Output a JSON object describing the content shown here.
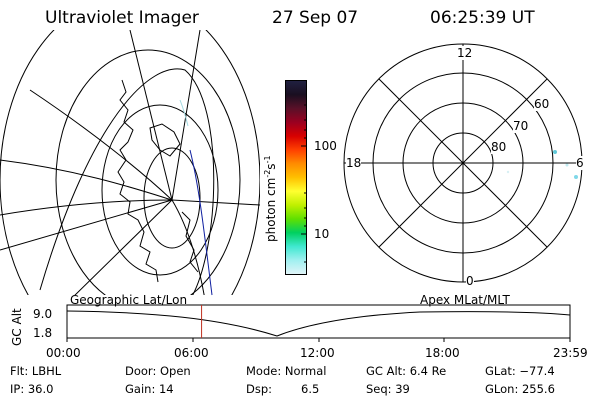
{
  "header": {
    "instrument": "Ultraviolet Imager",
    "date": "27 Sep 07",
    "time": "06:25:39 UT"
  },
  "colorbar": {
    "units": "photon cm",
    "units_sup1": "-2",
    "units_mid": "s",
    "units_sup2": "-1",
    "ticks": [
      "100",
      "10"
    ],
    "colors": [
      "#202040",
      "#1a0f20",
      "#5a1028",
      "#9a0020",
      "#d80000",
      "#ff4000",
      "#ff8c00",
      "#ffc000",
      "#ffff30",
      "#c0f000",
      "#60e000",
      "#00d060",
      "#40e8d0",
      "#a0f0f0",
      "#e0f4f8"
    ]
  },
  "polar_plot": {
    "mlt_labels": {
      "top": "12",
      "left": "18",
      "right": "6",
      "bottom": "0"
    },
    "lat_labels": [
      "60",
      "70",
      "80"
    ]
  },
  "timeline": {
    "left_label": "Geographic Lat/Lon",
    "right_label": "Apex MLat/MLT",
    "axis_title": "GC Alt",
    "ymax": "9.0",
    "ymin": "1.8",
    "xticks": [
      "00:00",
      "06:00",
      "12:00",
      "18:00",
      "23:59"
    ],
    "cursor_time": "06:25",
    "cursor_color": "#c03020"
  },
  "info": {
    "filter": "Flt: LBHL",
    "ip": "IP: 36.0",
    "door": "Door: Open",
    "gain": "Gain: 14",
    "mode": "Mode: Normal",
    "dsp_label": "Dsp:",
    "dsp_value": "6.5",
    "gc_alt": "GC Alt: 6.4 Re",
    "seq": "Seq: 39",
    "glat": "GLat: −77.4",
    "glon": "GLon: 255.6"
  }
}
